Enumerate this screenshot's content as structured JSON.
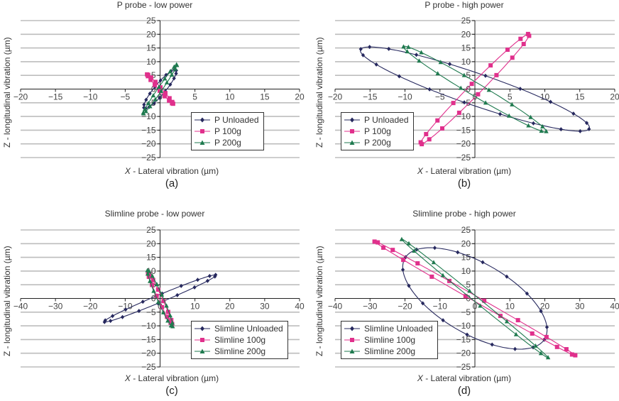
{
  "colors": {
    "unloaded": "#26285e",
    "g100": "#e0308c",
    "g200": "#1f7a4f",
    "grid": "#bdbdbd",
    "axis": "#222222"
  },
  "chart_data": [
    {
      "id": "a",
      "type": "scatter",
      "title": "P probe - low power",
      "xlabel_var": "X",
      "xlabel": " - Lateral vibration (µm)",
      "ylabel": "Z - longitudinal vibration (µm)",
      "sublabel": "(a)",
      "xlim": [
        -20,
        20
      ],
      "ylim": [
        -25,
        25
      ],
      "xticks": [
        -20,
        -15,
        -10,
        -5,
        0,
        5,
        10,
        15,
        20
      ],
      "yticks": [
        -25,
        -20,
        -15,
        -10,
        -5,
        0,
        5,
        10,
        15,
        20,
        25
      ],
      "xtick_labels": [
        "−20",
        "−15",
        "−10",
        "−5",
        "0",
        "5",
        "10",
        "15",
        "20"
      ],
      "ytick_labels": [
        "−25",
        "−20",
        "−15",
        "−10",
        "−5",
        "0",
        "5",
        "10",
        "15",
        "20",
        "25"
      ],
      "grid": true,
      "legend_position": "lower-right",
      "series": [
        {
          "name": "P Unloaded",
          "marker": "diamond",
          "color_key": "unloaded",
          "shape": "loop",
          "ellipse": {
            "cx": 0,
            "cy": 0,
            "a": 7.4,
            "b": 0.95,
            "angle_deg": 73
          },
          "n_points": 18
        },
        {
          "name": "P 100g",
          "marker": "square",
          "color_key": "g100",
          "shape": "loop",
          "ellipse": {
            "cx": 0,
            "cy": 0,
            "a": 5.7,
            "b": 0.25,
            "angle_deg": -71
          },
          "n_points": 16
        },
        {
          "name": "P 200g",
          "marker": "triangle",
          "color_key": "g200",
          "shape": "loop",
          "ellipse": {
            "cx": 0,
            "cy": 0,
            "a": 9.3,
            "b": 0.35,
            "angle_deg": 75
          },
          "n_points": 18
        }
      ]
    },
    {
      "id": "b",
      "type": "scatter",
      "title": "P probe - high power",
      "xlabel_var": "X",
      "xlabel": " - Lateral vibration (µm)",
      "ylabel": "Z - longitudinal vibration (µm)",
      "sublabel": "(b)",
      "xlim": [
        -20,
        20
      ],
      "ylim": [
        -25,
        25
      ],
      "xticks": [
        -20,
        -15,
        -10,
        -5,
        0,
        5,
        10,
        15,
        20
      ],
      "yticks": [
        -25,
        -20,
        -15,
        -10,
        -5,
        0,
        5,
        10,
        15,
        20,
        25
      ],
      "xtick_labels": [
        "−20",
        "−15",
        "−10",
        "−5",
        "0",
        "5",
        "10",
        "15",
        "20"
      ],
      "ytick_labels": [
        "−25",
        "−20",
        "−15",
        "−10",
        "−5",
        "0",
        "5",
        "10",
        "15",
        "20",
        "25"
      ],
      "grid": true,
      "legend_position": "lower-left",
      "series": [
        {
          "name": "P Unloaded",
          "marker": "diamond",
          "color_key": "unloaded",
          "shape": "loop",
          "ellipse": {
            "cx": 0,
            "cy": 0,
            "a": 22.0,
            "b": 4.6,
            "angle_deg": -43
          },
          "n_points": 20
        },
        {
          "name": "P 100g",
          "marker": "square",
          "color_key": "g100",
          "shape": "loop",
          "ellipse": {
            "cx": 0,
            "cy": 0,
            "a": 21.6,
            "b": 1.1,
            "angle_deg": 69
          },
          "n_points": 18
        },
        {
          "name": "P 200g",
          "marker": "triangle",
          "color_key": "g200",
          "shape": "loop",
          "ellipse": {
            "cx": 0,
            "cy": 0,
            "a": 18.6,
            "b": 1.5,
            "angle_deg": -57
          },
          "n_points": 18
        }
      ]
    },
    {
      "id": "c",
      "type": "scatter",
      "title": "Slimline probe - low power",
      "xlabel_var": "X",
      "xlabel": " - Lateral vibration (µm)",
      "ylabel": "Z - longitudinal vibration (µm)",
      "sublabel": "(c)",
      "xlim": [
        -40,
        40
      ],
      "ylim": [
        -25,
        25
      ],
      "xticks": [
        -40,
        -30,
        -20,
        -10,
        0,
        10,
        20,
        30,
        40
      ],
      "yticks": [
        -25,
        -20,
        -15,
        -10,
        -5,
        0,
        5,
        10,
        15,
        20,
        25
      ],
      "xtick_labels": [
        "−40",
        "−30",
        "−20",
        "−10",
        "0",
        "10",
        "20",
        "30",
        "40"
      ],
      "ytick_labels": [
        "−25",
        "−20",
        "−15",
        "−10",
        "−5",
        "0",
        "5",
        "10",
        "15",
        "20",
        "25"
      ],
      "grid": true,
      "legend_position": "lower-right",
      "series": [
        {
          "name": "Slimline Unloaded",
          "marker": "diamond",
          "color_key": "unloaded",
          "shape": "loop",
          "ellipse": {
            "cx": 0,
            "cy": 0,
            "a": 18.2,
            "b": 1.3,
            "angle_deg": 28
          },
          "n_points": 18
        },
        {
          "name": "Slimline 100g",
          "marker": "square",
          "color_key": "g100",
          "shape": "loop",
          "ellipse": {
            "cx": 0,
            "cy": 0,
            "a": 10.0,
            "b": 0.6,
            "angle_deg": -70
          },
          "n_points": 14
        },
        {
          "name": "Slimline 200g",
          "marker": "triangle",
          "color_key": "g200",
          "shape": "loop",
          "ellipse": {
            "cx": 0,
            "cy": 0,
            "a": 10.9,
            "b": 0.9,
            "angle_deg": -71
          },
          "n_points": 16
        }
      ]
    },
    {
      "id": "d",
      "type": "scatter",
      "title": "Slimline probe - high power",
      "xlabel_var": "X",
      "xlabel": " - Lateral vibration (µm)",
      "ylabel": "Z - longitudinal vibration (µm)",
      "sublabel": "(d)",
      "xlim": [
        -40,
        40
      ],
      "ylim": [
        -25,
        25
      ],
      "xticks": [
        -40,
        -30,
        -20,
        -10,
        0,
        10,
        20,
        30,
        40
      ],
      "yticks": [
        -25,
        -20,
        -15,
        -10,
        -5,
        0,
        5,
        10,
        15,
        20,
        25
      ],
      "xtick_labels": [
        "−40",
        "−30",
        "−20",
        "−10",
        "0",
        "10",
        "20",
        "30",
        "40"
      ],
      "ytick_labels": [
        "−25",
        "−20",
        "−15",
        "−10",
        "−5",
        "0",
        "5",
        "10",
        "15",
        "20",
        "25"
      ],
      "grid": true,
      "legend_position": "lower-left",
      "series": [
        {
          "name": "Slimline Unloaded",
          "marker": "diamond",
          "color_key": "unloaded",
          "shape": "loop",
          "ellipse": {
            "cx": 0,
            "cy": 0,
            "a": 25.0,
            "b": 12.0,
            "angle_deg": -40
          },
          "n_points": 18
        },
        {
          "name": "Slimline 100g",
          "marker": "square",
          "color_key": "g100",
          "shape": "loop",
          "ellipse": {
            "cx": 0,
            "cy": 0,
            "a": 35.6,
            "b": 0.9,
            "angle_deg": -36
          },
          "n_points": 18
        },
        {
          "name": "Slimline 200g",
          "marker": "triangle",
          "color_key": "g200",
          "shape": "loop",
          "ellipse": {
            "cx": 0,
            "cy": 0,
            "a": 30.2,
            "b": 0.8,
            "angle_deg": -46
          },
          "n_points": 12
        }
      ]
    }
  ]
}
